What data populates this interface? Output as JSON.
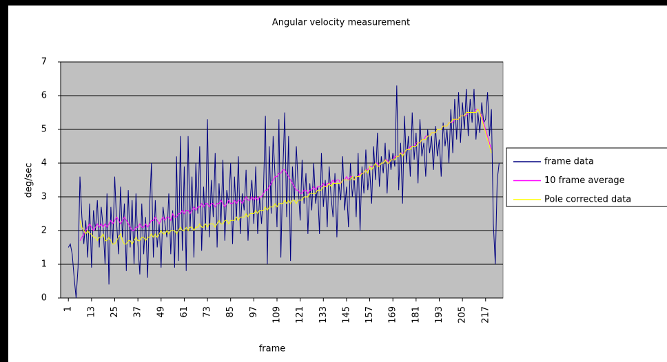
{
  "chart_data": {
    "type": "line",
    "title": "Angular velocity measurement",
    "x_label": "frame",
    "y_label": "deg/sec",
    "x": [
      1,
      2,
      3,
      4,
      5,
      6,
      7,
      8,
      9,
      10,
      11,
      12,
      13,
      14,
      15,
      16,
      17,
      18,
      19,
      20,
      21,
      22,
      23,
      24,
      25,
      26,
      27,
      28,
      29,
      30,
      31,
      32,
      33,
      34,
      35,
      36,
      37,
      38,
      39,
      40,
      41,
      42,
      43,
      44,
      45,
      46,
      47,
      48,
      49,
      50,
      51,
      52,
      53,
      54,
      55,
      56,
      57,
      58,
      59,
      60,
      61,
      62,
      63,
      64,
      65,
      66,
      67,
      68,
      69,
      70,
      71,
      72,
      73,
      74,
      75,
      76,
      77,
      78,
      79,
      80,
      81,
      82,
      83,
      84,
      85,
      86,
      87,
      88,
      89,
      90,
      91,
      92,
      93,
      94,
      95,
      96,
      97,
      98,
      99,
      100,
      101,
      102,
      103,
      104,
      105,
      106,
      107,
      108,
      109,
      110,
      111,
      112,
      113,
      114,
      115,
      116,
      117,
      118,
      119,
      120,
      121,
      122,
      123,
      124,
      125,
      126,
      127,
      128,
      129,
      130,
      131,
      132,
      133,
      134,
      135,
      136,
      137,
      138,
      139,
      140,
      141,
      142,
      143,
      144,
      145,
      146,
      147,
      148,
      149,
      150,
      151,
      152,
      153,
      154,
      155,
      156,
      157,
      158,
      159,
      160,
      161,
      162,
      163,
      164,
      165,
      166,
      167,
      168,
      169,
      170,
      171,
      172,
      173,
      174,
      175,
      176,
      177,
      178,
      179,
      180,
      181,
      182,
      183,
      184,
      185,
      186,
      187,
      188,
      189,
      190,
      191,
      192,
      193,
      194,
      195,
      196,
      197,
      198,
      199,
      200,
      201,
      202,
      203,
      204,
      205,
      206,
      207,
      208,
      209,
      210,
      211,
      212,
      213,
      214,
      215,
      216,
      217,
      218,
      219,
      220,
      221,
      222,
      223,
      224
    ],
    "xlim": [
      -3,
      226
    ],
    "xticks": [
      1,
      13,
      25,
      37,
      49,
      61,
      73,
      85,
      97,
      109,
      121,
      133,
      145,
      157,
      169,
      181,
      193,
      205,
      217
    ],
    "ylim": [
      0,
      7
    ],
    "yticks": [
      0,
      1,
      2,
      3,
      4,
      5,
      6,
      7
    ],
    "grid": true,
    "legend": "right",
    "series": [
      {
        "name": "frame data",
        "color": "#000080",
        "values": [
          1.5,
          1.6,
          1.3,
          0.6,
          0.0,
          0.9,
          3.6,
          2.4,
          1.6,
          2.3,
          1.2,
          2.8,
          0.9,
          2.6,
          2.0,
          2.9,
          1.5,
          2.7,
          2.1,
          1.0,
          3.1,
          0.4,
          2.7,
          1.6,
          3.6,
          2.2,
          1.3,
          3.3,
          1.8,
          2.8,
          0.8,
          3.2,
          1.5,
          2.9,
          1.0,
          3.1,
          1.6,
          0.7,
          2.8,
          1.3,
          2.4,
          0.6,
          2.6,
          4.0,
          1.2,
          2.9,
          1.5,
          2.2,
          0.9,
          2.7,
          2.2,
          1.8,
          3.1,
          1.3,
          2.6,
          0.9,
          4.2,
          1.1,
          4.8,
          1.4,
          3.9,
          0.8,
          4.8,
          2.0,
          3.6,
          1.2,
          4.0,
          2.5,
          4.5,
          1.4,
          3.3,
          2.0,
          5.3,
          1.8,
          3.5,
          2.4,
          4.3,
          1.5,
          3.4,
          2.2,
          4.1,
          1.7,
          3.2,
          2.8,
          4.0,
          1.6,
          3.6,
          2.3,
          4.2,
          1.9,
          3.1,
          2.6,
          3.8,
          1.7,
          2.9,
          3.5,
          2.2,
          3.9,
          1.9,
          3.0,
          2.2,
          3.2,
          5.4,
          1.0,
          4.5,
          2.5,
          4.8,
          3.6,
          2.1,
          5.3,
          1.2,
          3.7,
          5.5,
          2.4,
          4.8,
          1.1,
          3.9,
          2.9,
          4.5,
          3.3,
          2.3,
          4.1,
          2.8,
          3.7,
          1.9,
          3.4,
          2.6,
          4.0,
          2.8,
          3.3,
          1.9,
          4.3,
          2.7,
          3.5,
          2.1,
          3.9,
          3.0,
          2.4,
          3.7,
          1.8,
          3.4,
          2.9,
          4.2,
          2.6,
          3.3,
          2.1,
          4.0,
          3.0,
          3.6,
          2.4,
          4.3,
          2.0,
          3.9,
          3.1,
          4.4,
          3.2,
          3.8,
          2.8,
          4.5,
          3.5,
          4.9,
          3.3,
          4.2,
          3.7,
          4.6,
          3.1,
          4.4,
          3.8,
          4.3,
          3.9,
          6.3,
          3.2,
          4.6,
          2.8,
          5.4,
          4.0,
          4.8,
          3.6,
          5.5,
          4.1,
          4.9,
          3.4,
          5.3,
          4.2,
          4.6,
          3.6,
          5.0,
          4.3,
          4.8,
          3.8,
          5.1,
          4.2,
          4.7,
          3.6,
          5.2,
          4.5,
          5.0,
          4.0,
          5.6,
          4.3,
          5.9,
          4.7,
          6.1,
          4.6,
          5.8,
          5.0,
          6.2,
          4.8,
          5.9,
          5.2,
          6.2,
          4.7,
          5.5,
          4.9,
          5.8,
          5.2,
          5.3,
          6.1,
          4.8,
          5.6,
          2.2,
          1.0,
          3.5,
          4.0
        ]
      },
      {
        "name": "10 frame average",
        "color": "#ff00ff",
        "values": [
          null,
          null,
          null,
          null,
          null,
          null,
          1.7,
          1.8,
          1.9,
          2.0,
          2.1,
          2.2,
          2.1,
          2.0,
          2.1,
          2.2,
          2.1,
          2.2,
          2.1,
          2.2,
          2.1,
          2.2,
          2.3,
          2.2,
          2.3,
          2.4,
          2.3,
          2.2,
          2.3,
          2.4,
          2.3,
          2.2,
          2.1,
          2.0,
          2.0,
          2.1,
          2.1,
          2.2,
          2.1,
          2.1,
          2.2,
          2.1,
          2.2,
          2.3,
          2.3,
          2.4,
          2.3,
          2.2,
          2.3,
          2.4,
          2.3,
          2.4,
          2.4,
          2.3,
          2.5,
          2.4,
          2.4,
          2.5,
          2.5,
          2.6,
          2.5,
          2.6,
          2.6,
          2.5,
          2.6,
          2.7,
          2.6,
          2.7,
          2.7,
          2.8,
          2.7,
          2.8,
          2.8,
          2.7,
          2.8,
          2.8,
          2.7,
          2.8,
          2.8,
          2.9,
          2.8,
          2.7,
          2.8,
          2.9,
          2.8,
          2.8,
          2.9,
          2.8,
          2.9,
          2.9,
          2.8,
          2.9,
          3.0,
          2.9,
          2.9,
          3.0,
          2.9,
          3.0,
          2.9,
          3.0,
          3.0,
          3.1,
          3.2,
          3.2,
          3.3,
          3.4,
          3.5,
          3.6,
          3.6,
          3.7,
          3.7,
          3.8,
          3.8,
          3.7,
          3.6,
          3.5,
          3.4,
          3.3,
          3.2,
          3.2,
          3.1,
          3.1,
          3.2,
          3.2,
          3.1,
          3.2,
          3.2,
          3.3,
          3.2,
          3.3,
          3.3,
          3.3,
          3.4,
          3.3,
          3.4,
          3.4,
          3.4,
          3.5,
          3.4,
          3.5,
          3.5,
          3.4,
          3.5,
          3.5,
          3.6,
          3.5,
          3.6,
          3.6,
          3.5,
          3.6,
          3.6,
          3.7,
          3.7,
          3.7,
          3.8,
          3.8,
          3.9,
          3.9,
          3.9,
          4.0,
          4.0,
          3.9,
          4.0,
          4.0,
          4.1,
          4.1,
          4.0,
          4.1,
          4.1,
          4.2,
          4.2,
          4.2,
          4.3,
          4.3,
          4.3,
          4.4,
          4.4,
          4.5,
          4.5,
          4.5,
          4.6,
          4.6,
          4.6,
          4.7,
          4.7,
          4.8,
          4.8,
          4.8,
          4.9,
          4.9,
          4.9,
          5.0,
          5.0,
          5.0,
          5.1,
          5.1,
          5.1,
          5.2,
          5.2,
          5.2,
          5.3,
          5.3,
          5.3,
          5.4,
          5.4,
          5.4,
          5.4,
          5.5,
          5.5,
          5.5,
          5.5,
          5.6,
          5.6,
          5.5,
          5.4,
          5.2,
          5.0,
          4.8,
          4.6,
          4.4,
          null,
          null,
          null,
          null
        ]
      },
      {
        "name": "Pole corrected data",
        "color": "#ffff00",
        "values": [
          null,
          null,
          null,
          null,
          null,
          null,
          2.3,
          2.1,
          2.0,
          1.9,
          2.0,
          1.9,
          1.9,
          1.8,
          1.8,
          1.7,
          1.8,
          1.8,
          1.9,
          1.7,
          1.7,
          1.8,
          1.7,
          1.6,
          1.6,
          1.7,
          1.8,
          1.9,
          1.7,
          1.6,
          1.6,
          1.7,
          1.7,
          1.6,
          1.7,
          1.8,
          1.7,
          1.7,
          1.8,
          1.8,
          1.7,
          1.8,
          1.8,
          1.9,
          1.8,
          1.9,
          1.8,
          1.9,
          2.0,
          1.9,
          1.9,
          2.0,
          1.9,
          2.0,
          2.0,
          2.0,
          1.9,
          2.0,
          2.1,
          2.0,
          2.0,
          2.1,
          2.0,
          2.1,
          2.1,
          2.0,
          2.1,
          2.1,
          2.2,
          2.1,
          2.1,
          2.2,
          2.1,
          2.2,
          2.2,
          2.2,
          2.1,
          2.2,
          2.3,
          2.2,
          2.2,
          2.3,
          2.3,
          2.2,
          2.3,
          2.3,
          2.3,
          2.4,
          2.3,
          2.4,
          2.4,
          2.4,
          2.5,
          2.4,
          2.5,
          2.5,
          2.5,
          2.6,
          2.5,
          2.6,
          2.6,
          2.6,
          2.7,
          2.6,
          2.7,
          2.7,
          2.7,
          2.8,
          2.7,
          2.8,
          2.8,
          2.8,
          2.9,
          2.8,
          2.9,
          2.8,
          2.9,
          2.9,
          2.8,
          2.9,
          2.9,
          2.9,
          3.0,
          3.0,
          3.0,
          3.1,
          3.1,
          3.1,
          3.1,
          3.2,
          3.2,
          3.2,
          3.3,
          3.3,
          3.3,
          3.4,
          3.3,
          3.4,
          3.4,
          3.4,
          3.4,
          3.4,
          3.5,
          3.5,
          3.5,
          3.5,
          3.5,
          3.6,
          3.5,
          3.6,
          3.6,
          3.6,
          3.7,
          3.7,
          3.8,
          3.7,
          3.9,
          3.8,
          3.9,
          4.0,
          3.9,
          3.9,
          4.0,
          4.0,
          4.1,
          4.0,
          4.0,
          4.1,
          4.1,
          4.1,
          4.2,
          4.2,
          4.3,
          4.2,
          4.3,
          4.4,
          4.4,
          4.4,
          4.5,
          4.5,
          4.5,
          4.6,
          4.6,
          4.7,
          4.7,
          4.7,
          4.8,
          4.8,
          4.9,
          4.9,
          4.9,
          5.0,
          5.0,
          5.0,
          5.1,
          5.1,
          5.1,
          5.2,
          5.2,
          5.3,
          5.3,
          5.3,
          5.3,
          5.4,
          5.4,
          5.4,
          5.5,
          5.5,
          5.5,
          5.5,
          5.5,
          5.5,
          5.6,
          5.5,
          5.3,
          5.1,
          4.9,
          4.7,
          4.5,
          4.3,
          null,
          null,
          null,
          null
        ]
      }
    ]
  }
}
